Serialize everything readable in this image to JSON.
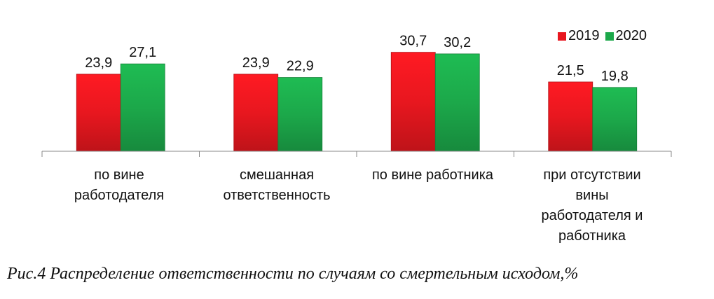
{
  "chart_data": {
    "type": "bar",
    "categories": [
      "по вине\nработодателя",
      "смешанная\nответственность",
      "по вине работника",
      "при отсутствии\nвины\nработодателя и\nработника"
    ],
    "series": [
      {
        "name": "2019",
        "values": [
          23.9,
          23.9,
          30.7,
          21.5
        ],
        "labels": [
          "23,9",
          "23,9",
          "30,7",
          "21,5"
        ],
        "color": "#e8171f"
      },
      {
        "name": "2020",
        "values": [
          27.1,
          22.9,
          30.2,
          19.8
        ],
        "labels": [
          "27,1",
          "22,9",
          "30,2",
          "19,8"
        ],
        "color": "#1ca84a"
      }
    ],
    "ylim": [
      0,
      36.7
    ],
    "grid": false,
    "legend_position": "top-right"
  },
  "caption": "Рис.4 Распределение ответственности по случаям со смертельным исходом,%"
}
